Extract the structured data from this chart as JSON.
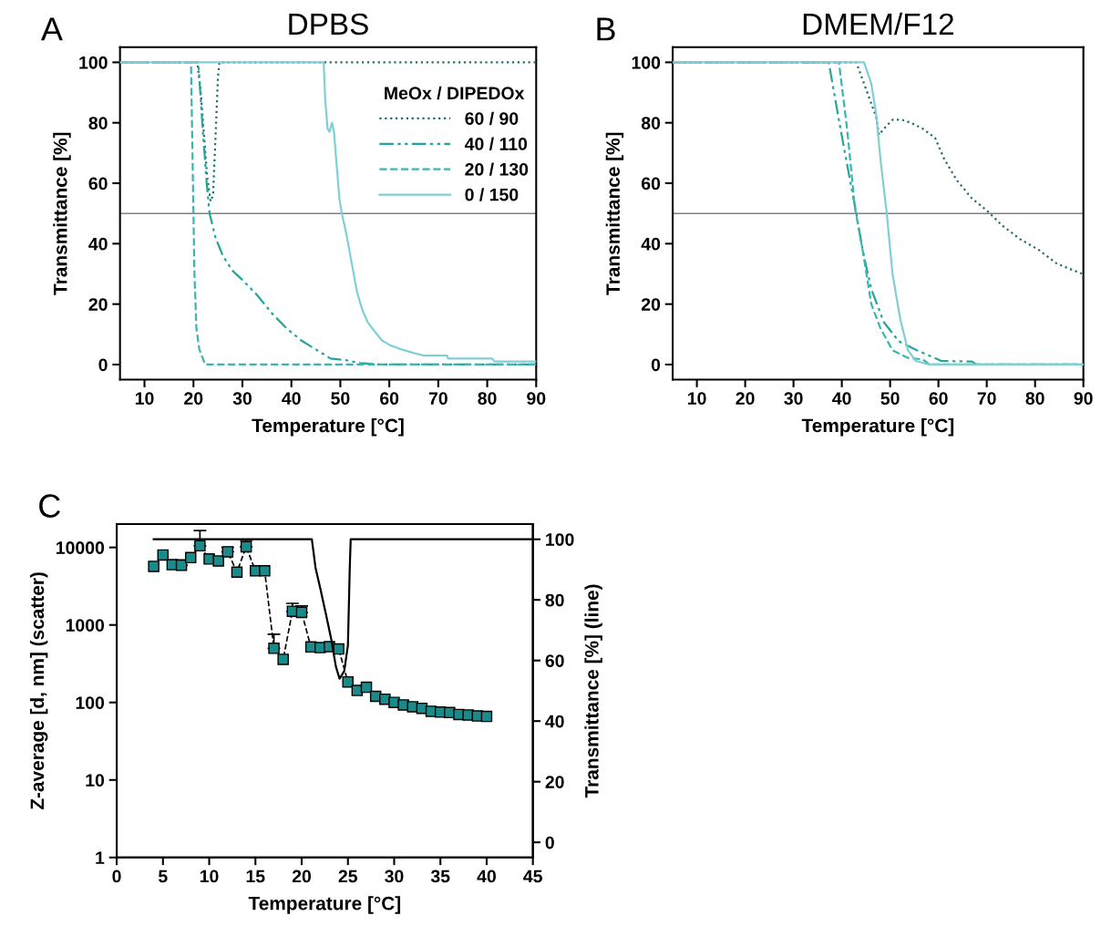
{
  "chart_data": [
    {
      "type": "line",
      "title": "DPBS",
      "xlabel": "Temperature [°C]",
      "ylabel": "Transmittance [%]",
      "annotations": [
        "A"
      ],
      "xlim": [
        5,
        90
      ],
      "xticks": [
        10,
        20,
        30,
        40,
        50,
        60,
        70,
        80,
        90
      ],
      "ylim": [
        -5,
        105
      ],
      "yticks": [
        0,
        20,
        40,
        60,
        80,
        100
      ],
      "legend": "top right",
      "legend_title": "MeOx / DIPEDOx",
      "ref_lines": [
        {
          "axis": "y",
          "value": 50,
          "color": "#808080"
        }
      ],
      "series": [
        {
          "name": "60 / 90",
          "color": "#1e6f6a",
          "line_style": "dotted",
          "x": [
            5,
            20.8,
            21.5,
            22.2,
            22.8,
            23.5,
            24.0,
            24.5,
            25.0,
            25.3,
            90
          ],
          "values": [
            100,
            100,
            90,
            75,
            62,
            54,
            56,
            75,
            95,
            100,
            100
          ]
        },
        {
          "name": "40 / 110",
          "color": "#26a69a",
          "line_style": "dashdot",
          "x": [
            5,
            21,
            21.8,
            22.7,
            23.3,
            24.5,
            26,
            28,
            30,
            33,
            36,
            39,
            42,
            45,
            48,
            51,
            54,
            58,
            90
          ],
          "values": [
            100,
            100,
            80,
            60,
            50,
            42,
            36,
            31,
            28,
            23,
            17,
            12,
            8,
            5,
            2,
            1.5,
            0.5,
            0,
            0
          ]
        },
        {
          "name": "20 / 130",
          "color": "#3bb5b0",
          "line_style": "dashed",
          "x": [
            5,
            19.5,
            19.9,
            20.2,
            20.6,
            21.2,
            22.4,
            90
          ],
          "values": [
            100,
            100,
            60,
            30,
            12,
            5,
            0,
            0
          ]
        },
        {
          "name": "0 / 150",
          "color": "#80cfd8",
          "line_style": "solid",
          "x": [
            5,
            46.6,
            46.9,
            47.4,
            47.8,
            48.3,
            48.7,
            49.3,
            49.8,
            50.3,
            51,
            51.6,
            52.5,
            53.4,
            54.5,
            55.6,
            57,
            58.5,
            60,
            62.5,
            65,
            67,
            71.8,
            72,
            81,
            81.5,
            90
          ],
          "values": [
            100,
            100,
            88,
            78,
            77,
            80,
            77,
            65,
            55,
            50,
            45,
            40,
            32,
            24,
            18,
            14,
            11,
            8,
            6.5,
            5,
            3.8,
            3,
            3,
            2,
            2,
            1,
            1
          ]
        }
      ]
    },
    {
      "type": "line",
      "title": "DMEM/F12",
      "xlabel": "Temperature [°C]",
      "ylabel": "Transmittance [%]",
      "annotations": [
        "B"
      ],
      "xlim": [
        5,
        90
      ],
      "xticks": [
        10,
        20,
        30,
        40,
        50,
        60,
        70,
        80,
        90
      ],
      "ylim": [
        -5,
        105
      ],
      "yticks": [
        0,
        20,
        40,
        60,
        80,
        100
      ],
      "ref_lines": [
        {
          "axis": "y",
          "value": 50,
          "color": "#808080"
        }
      ],
      "series": [
        {
          "color": "#1e6f6a",
          "line_style": "dotted",
          "x": [
            5,
            43,
            45.5,
            47.1,
            47.7,
            48.7,
            50.5,
            52.4,
            54.3,
            56.8,
            59.3,
            61.2,
            63.8,
            66.9,
            70,
            73.2,
            76.9,
            80.7,
            84.5,
            87.6,
            89.8,
            90
          ],
          "values": [
            100,
            100,
            89,
            82,
            76,
            78,
            81,
            81,
            80,
            78,
            75,
            68,
            61,
            55,
            51,
            46,
            41.5,
            38,
            33.4,
            31.4,
            30,
            28.4
          ]
        },
        {
          "color": "#26a69a",
          "line_style": "dashdot",
          "x": [
            5,
            37.3,
            39.5,
            41.7,
            43,
            44.3,
            46.1,
            48.7,
            51.8,
            55.6,
            60.6,
            66.9,
            67.9,
            90
          ],
          "values": [
            100,
            100,
            80,
            61,
            50,
            38,
            25,
            14,
            7.7,
            4.7,
            1.2,
            1,
            0,
            0
          ]
        },
        {
          "color": "#3bb5b0",
          "line_style": "dashed",
          "x": [
            5,
            39.4,
            41.1,
            42.7,
            44.3,
            46.1,
            48,
            50.5,
            53.7,
            56.8,
            58.1,
            90
          ],
          "values": [
            100,
            100,
            78,
            52,
            38,
            20,
            12,
            4.7,
            2.2,
            1.7,
            0,
            0
          ]
        },
        {
          "color": "#80cfd8",
          "line_style": "solid",
          "x": [
            5,
            44.6,
            46.1,
            47.1,
            48,
            49.3,
            50.5,
            52.1,
            53.7,
            55.3,
            58.1,
            90
          ],
          "values": [
            100,
            100,
            93,
            83,
            68,
            50,
            30,
            15,
            4.7,
            1.2,
            0,
            0
          ]
        }
      ]
    },
    {
      "type": "line",
      "xlabel": "Temperature [°C]",
      "ylabel": "Z-average [d, nm] (scatter)",
      "y2label": "Transmittance [%] (line)",
      "annotations": [
        "C"
      ],
      "log": "y",
      "xlim": [
        0,
        45
      ],
      "xticks": [
        0,
        5,
        10,
        15,
        20,
        25,
        30,
        35,
        40,
        45
      ],
      "ylim": [
        1,
        20000
      ],
      "yticks": [
        1,
        10,
        100,
        1000,
        10000
      ],
      "y2lim": [
        -5,
        105
      ],
      "y2ticks": [
        0,
        20,
        40,
        60,
        80,
        100
      ],
      "series": [
        {
          "type": "line",
          "marker": "square",
          "line_style": "dashed",
          "color": "#1a8a8a",
          "x": [
            4,
            5,
            6,
            7,
            8,
            9,
            10,
            11,
            12,
            13,
            14,
            15,
            16,
            17,
            18,
            19,
            20,
            21,
            22,
            23,
            24,
            25,
            26,
            27,
            28,
            29,
            30,
            31,
            32,
            33,
            34,
            35,
            36,
            37,
            38,
            39,
            40
          ],
          "values": [
            5700,
            8000,
            6000,
            5900,
            7400,
            10500,
            7100,
            6700,
            8800,
            4800,
            10200,
            5000,
            5000,
            500,
            360,
            1500,
            1450,
            520,
            510,
            525,
            490,
            184,
            143,
            157,
            120,
            110,
            100,
            93,
            88,
            84,
            77,
            75,
            74,
            70,
            69,
            67,
            66
          ],
          "errors": [
            null,
            null,
            null,
            [
              5900,
              6900
            ],
            null,
            [
              10500,
              16500
            ],
            null,
            null,
            [
              8800,
              10000
            ],
            null,
            [
              10200,
              12300
            ],
            null,
            null,
            [
              500,
              760
            ],
            null,
            [
              1500,
              1900
            ],
            [
              1450,
              1760
            ],
            null,
            null,
            null,
            null,
            null,
            null,
            null,
            null,
            null,
            null,
            null,
            null,
            null,
            null,
            null,
            null,
            null,
            null,
            null,
            null
          ]
        },
        {
          "type": "line",
          "axis": "y2",
          "line_style": "solid",
          "color": "#000000",
          "x": [
            4,
            21.1,
            21.5,
            22,
            22.6,
            23.2,
            23.7,
            24.1,
            24.6,
            25,
            25.2,
            25.3,
            45
          ],
          "values": [
            100,
            100,
            90.6,
            84,
            75.6,
            67,
            58,
            54,
            56.5,
            65,
            90.5,
            100,
            100
          ]
        }
      ]
    }
  ]
}
